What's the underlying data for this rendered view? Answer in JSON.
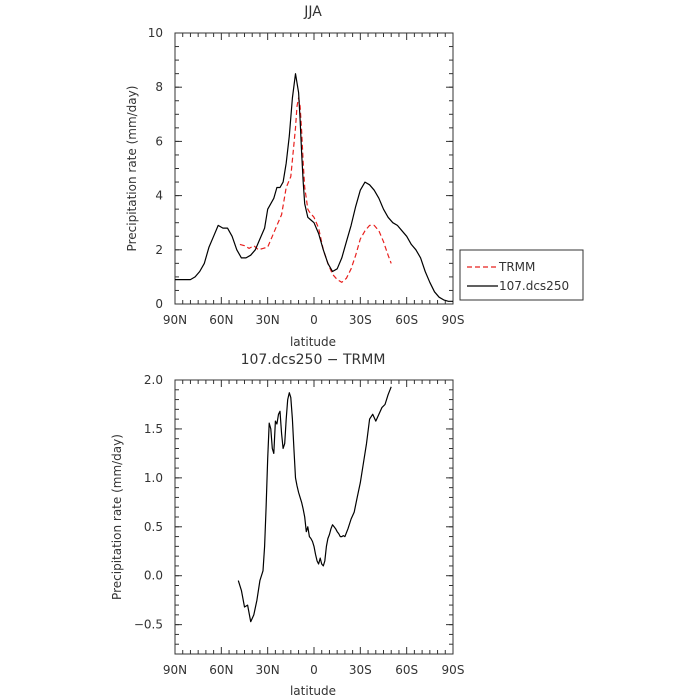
{
  "chart_data": [
    {
      "type": "line",
      "title": "JJA",
      "xlabel": "latitude",
      "ylabel": "Precipitation rate (mm/day)",
      "xlim": [
        90,
        -90
      ],
      "ylim": [
        0,
        10
      ],
      "x_ticks": [
        {
          "value": 90,
          "label": "90N"
        },
        {
          "value": 60,
          "label": "60N"
        },
        {
          "value": 30,
          "label": "30N"
        },
        {
          "value": 0,
          "label": "0"
        },
        {
          "value": -30,
          "label": "30S"
        },
        {
          "value": -60,
          "label": "60S"
        },
        {
          "value": -90,
          "label": "90S"
        }
      ],
      "y_ticks": [
        {
          "value": 0,
          "label": "0"
        },
        {
          "value": 2,
          "label": "2"
        },
        {
          "value": 4,
          "label": "4"
        },
        {
          "value": 6,
          "label": "6"
        },
        {
          "value": 8,
          "label": "8"
        },
        {
          "value": 10,
          "label": "10"
        }
      ],
      "legend": {
        "placement": "right"
      },
      "series": [
        {
          "name": "TRMM",
          "color": "#e8201e",
          "dash": "dashed",
          "x": [
            48,
            45,
            42,
            39,
            36,
            33,
            30,
            27,
            24,
            21,
            18,
            15,
            12,
            11,
            10,
            9,
            8,
            7,
            6,
            5,
            4,
            3,
            0,
            -3,
            -6,
            -9,
            -12,
            -15,
            -18,
            -21,
            -24,
            -27,
            -30,
            -33,
            -36,
            -39,
            -42,
            -45,
            -48,
            -50
          ],
          "y": [
            2.2,
            2.15,
            2.05,
            2.15,
            2.0,
            2.05,
            2.1,
            2.5,
            2.9,
            3.3,
            4.3,
            4.7,
            6.5,
            7.3,
            7.6,
            7.3,
            6.4,
            5.2,
            4.3,
            3.9,
            3.5,
            3.4,
            3.2,
            2.8,
            2.0,
            1.5,
            1.1,
            0.9,
            0.8,
            0.95,
            1.3,
            1.8,
            2.4,
            2.7,
            2.9,
            2.9,
            2.7,
            2.3,
            1.8,
            1.5
          ]
        },
        {
          "name": "107.dcs250",
          "color": "#000000",
          "dash": "solid",
          "x": [
            90,
            85,
            80,
            77,
            74,
            71,
            68,
            65,
            62,
            59,
            56,
            53,
            50,
            47,
            44,
            41,
            38,
            35,
            32,
            30,
            28,
            26,
            24,
            22,
            20,
            18,
            16,
            14,
            12,
            10,
            9,
            8,
            7,
            6,
            4,
            2,
            0,
            -3,
            -6,
            -9,
            -12,
            -15,
            -18,
            -21,
            -24,
            -27,
            -30,
            -33,
            -36,
            -39,
            -42,
            -45,
            -48,
            -51,
            -54,
            -57,
            -60,
            -63,
            -66,
            -69,
            -72,
            -75,
            -78,
            -81,
            -84,
            -87,
            -90
          ],
          "y": [
            0.9,
            0.9,
            0.9,
            1.0,
            1.2,
            1.5,
            2.1,
            2.5,
            2.9,
            2.8,
            2.8,
            2.5,
            2.0,
            1.7,
            1.7,
            1.8,
            2.0,
            2.4,
            2.8,
            3.5,
            3.7,
            3.9,
            4.3,
            4.3,
            4.5,
            5.2,
            6.2,
            7.6,
            8.5,
            7.8,
            6.8,
            5.6,
            4.5,
            3.7,
            3.2,
            3.1,
            3.0,
            2.6,
            2.0,
            1.5,
            1.2,
            1.3,
            1.7,
            2.3,
            2.9,
            3.6,
            4.2,
            4.5,
            4.4,
            4.2,
            3.9,
            3.5,
            3.2,
            3.0,
            2.9,
            2.7,
            2.5,
            2.2,
            2.0,
            1.7,
            1.2,
            0.8,
            0.45,
            0.25,
            0.15,
            0.1,
            0.1
          ]
        }
      ]
    },
    {
      "type": "line",
      "title": "107.dcs250 − TRMM",
      "xlabel": "latitude",
      "ylabel": "Precipitation rate (mm/day)",
      "xlim": [
        90,
        -90
      ],
      "ylim": [
        -0.8,
        2.0
      ],
      "x_ticks": [
        {
          "value": 90,
          "label": "90N"
        },
        {
          "value": 60,
          "label": "60N"
        },
        {
          "value": 30,
          "label": "30N"
        },
        {
          "value": 0,
          "label": "0"
        },
        {
          "value": -30,
          "label": "30S"
        },
        {
          "value": -60,
          "label": "60S"
        },
        {
          "value": -90,
          "label": "90S"
        }
      ],
      "y_ticks": [
        {
          "value": -0.5,
          "label": "−0.5"
        },
        {
          "value": 0.0,
          "label": "0.0"
        },
        {
          "value": 0.5,
          "label": "0.5"
        },
        {
          "value": 1.0,
          "label": "1.0"
        },
        {
          "value": 1.5,
          "label": "1.5"
        },
        {
          "value": 2.0,
          "label": "2.0"
        }
      ],
      "series": [
        {
          "color": "#000000",
          "dash": "solid",
          "x": [
            49,
            47,
            45,
            43,
            41,
            39,
            37,
            35,
            33,
            32,
            31,
            30,
            29,
            28,
            27,
            26,
            25,
            24,
            23,
            22,
            21,
            20,
            19,
            18,
            17,
            16,
            15,
            14,
            13,
            12,
            11,
            10,
            9,
            8,
            7,
            6,
            5,
            4,
            3,
            2,
            1,
            0,
            -1,
            -2,
            -3,
            -4,
            -5,
            -6,
            -7,
            -8,
            -9,
            -10,
            -11,
            -12,
            -13,
            -14,
            -15,
            -16,
            -17,
            -18,
            -19,
            -20,
            -22,
            -24,
            -26,
            -28,
            -30,
            -32,
            -34,
            -36,
            -38,
            -40,
            -42,
            -44,
            -46,
            -48,
            -50
          ],
          "y": [
            -0.05,
            -0.15,
            -0.32,
            -0.3,
            -0.47,
            -0.4,
            -0.25,
            -0.05,
            0.05,
            0.3,
            0.7,
            1.2,
            1.56,
            1.5,
            1.3,
            1.25,
            1.58,
            1.55,
            1.65,
            1.68,
            1.45,
            1.3,
            1.35,
            1.6,
            1.8,
            1.87,
            1.82,
            1.6,
            1.3,
            1.0,
            0.92,
            0.85,
            0.8,
            0.75,
            0.68,
            0.6,
            0.45,
            0.5,
            0.4,
            0.38,
            0.35,
            0.3,
            0.22,
            0.15,
            0.12,
            0.18,
            0.12,
            0.1,
            0.15,
            0.3,
            0.38,
            0.42,
            0.48,
            0.52,
            0.5,
            0.48,
            0.45,
            0.43,
            0.4,
            0.4,
            0.41,
            0.4,
            0.48,
            0.58,
            0.65,
            0.8,
            0.95,
            1.15,
            1.35,
            1.6,
            1.65,
            1.58,
            1.65,
            1.72,
            1.75,
            1.85,
            1.93
          ]
        }
      ]
    }
  ]
}
